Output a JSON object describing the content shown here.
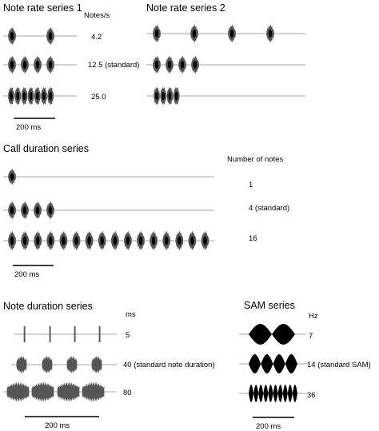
{
  "note_rate": {
    "title1": "Note rate series 1",
    "title2": "Note rate series 2",
    "unit": "Notes/s",
    "rates": [
      "4.2",
      "12.5 (standard)",
      "25.0"
    ],
    "scale": "200 ms"
  },
  "call_duration": {
    "title": "Call duration series",
    "unit": "Number of notes",
    "counts": [
      "1",
      "4 (standard)",
      "16"
    ],
    "scale": "200 ms"
  },
  "note_duration": {
    "title": "Note duration series",
    "unit": "ms",
    "durations": [
      "5",
      "40 (standard note duration)",
      "80"
    ],
    "scale": "200 ms"
  },
  "sam": {
    "title": "SAM series",
    "unit": "Hz",
    "freqs": [
      "7",
      "14  (standard SAM)",
      "36"
    ],
    "scale": "200 ms"
  },
  "colors": {
    "ink": "#000000",
    "waveform": "#555555",
    "baseline": "#888888"
  }
}
